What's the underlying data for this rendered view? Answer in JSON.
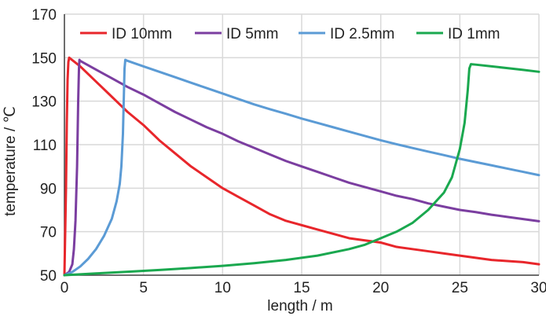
{
  "chart_data": {
    "type": "line",
    "title": "",
    "xlabel": "length / m",
    "ylabel": "temperature / ℃",
    "xlim": [
      0,
      30
    ],
    "ylim": [
      50,
      170
    ],
    "xticks": [
      "0",
      "5",
      "10",
      "15",
      "20",
      "25",
      "30"
    ],
    "yticks": [
      "50",
      "70",
      "90",
      "110",
      "130",
      "150",
      "170"
    ],
    "grid": true,
    "legend_position": "top",
    "series": [
      {
        "name": "ID 10mm",
        "color": "#e8262b",
        "points": [
          [
            0,
            50
          ],
          [
            0.1,
            90
          ],
          [
            0.15,
            120
          ],
          [
            0.2,
            140
          ],
          [
            0.25,
            148
          ],
          [
            0.3,
            150
          ],
          [
            1,
            146
          ],
          [
            2,
            139
          ],
          [
            3,
            132
          ],
          [
            4,
            125
          ],
          [
            5,
            119
          ],
          [
            6,
            112
          ],
          [
            7,
            106
          ],
          [
            8,
            100
          ],
          [
            9,
            95
          ],
          [
            10,
            90
          ],
          [
            11,
            86
          ],
          [
            12,
            82
          ],
          [
            13,
            78
          ],
          [
            14,
            75
          ],
          [
            15,
            73
          ],
          [
            16,
            71
          ],
          [
            17,
            69
          ],
          [
            18,
            67
          ],
          [
            19,
            66
          ],
          [
            20,
            65
          ],
          [
            21,
            63
          ],
          [
            22,
            62
          ],
          [
            23,
            61
          ],
          [
            24,
            60
          ],
          [
            25,
            59
          ],
          [
            26,
            58
          ],
          [
            27,
            57
          ],
          [
            28,
            56.5
          ],
          [
            29,
            56
          ],
          [
            30,
            55
          ]
        ]
      },
      {
        "name": "ID 5mm",
        "color": "#7b3ea0",
        "points": [
          [
            0,
            50
          ],
          [
            0.3,
            51.5
          ],
          [
            0.5,
            55
          ],
          [
            0.6,
            62
          ],
          [
            0.7,
            75
          ],
          [
            0.8,
            100
          ],
          [
            0.87,
            130
          ],
          [
            0.92,
            145
          ],
          [
            0.95,
            149
          ],
          [
            1,
            148.5
          ],
          [
            2,
            144.5
          ],
          [
            3,
            140.5
          ],
          [
            4,
            136.5
          ],
          [
            5,
            133
          ],
          [
            6,
            129
          ],
          [
            7,
            125
          ],
          [
            8,
            121.5
          ],
          [
            9,
            118
          ],
          [
            10,
            115
          ],
          [
            11,
            111.5
          ],
          [
            12,
            108.5
          ],
          [
            13,
            105.5
          ],
          [
            14,
            102.5
          ],
          [
            15,
            100
          ],
          [
            16,
            97.5
          ],
          [
            17,
            95
          ],
          [
            18,
            92.5
          ],
          [
            19,
            90.5
          ],
          [
            20,
            88.5
          ],
          [
            21,
            86.5
          ],
          [
            22,
            85
          ],
          [
            23,
            83
          ],
          [
            24,
            81.5
          ],
          [
            25,
            80
          ],
          [
            26,
            79
          ],
          [
            27,
            77.8
          ],
          [
            28,
            76.8
          ],
          [
            29,
            75.8
          ],
          [
            30,
            74.8
          ]
        ]
      },
      {
        "name": "ID 2.5mm",
        "color": "#5b9bd5",
        "points": [
          [
            0,
            50
          ],
          [
            0.5,
            51.5
          ],
          [
            1,
            54
          ],
          [
            1.5,
            57.5
          ],
          [
            2,
            62
          ],
          [
            2.5,
            68
          ],
          [
            3,
            76
          ],
          [
            3.3,
            84
          ],
          [
            3.5,
            92
          ],
          [
            3.6,
            100
          ],
          [
            3.7,
            115
          ],
          [
            3.75,
            130
          ],
          [
            3.8,
            145
          ],
          [
            3.85,
            149
          ],
          [
            4,
            148.5
          ],
          [
            5,
            146
          ],
          [
            6,
            143.5
          ],
          [
            7,
            141
          ],
          [
            8,
            138.5
          ],
          [
            9,
            136
          ],
          [
            10,
            133.5
          ],
          [
            11,
            131
          ],
          [
            12,
            128.5
          ],
          [
            13,
            126.3
          ],
          [
            14,
            124.2
          ],
          [
            15,
            122
          ],
          [
            16,
            120
          ],
          [
            17,
            118
          ],
          [
            18,
            116
          ],
          [
            19,
            114
          ],
          [
            20,
            112
          ],
          [
            21,
            110.2
          ],
          [
            22,
            108.5
          ],
          [
            23,
            106.8
          ],
          [
            24,
            105.2
          ],
          [
            25,
            103.5
          ],
          [
            26,
            102
          ],
          [
            27,
            100.5
          ],
          [
            28,
            99
          ],
          [
            29,
            97.5
          ],
          [
            30,
            96
          ]
        ]
      },
      {
        "name": "ID 1mm",
        "color": "#1aa84f",
        "points": [
          [
            0,
            50
          ],
          [
            2,
            50.8
          ],
          [
            4,
            51.6
          ],
          [
            6,
            52.4
          ],
          [
            8,
            53.3
          ],
          [
            10,
            54.3
          ],
          [
            12,
            55.5
          ],
          [
            14,
            57
          ],
          [
            16,
            59
          ],
          [
            18,
            62
          ],
          [
            19,
            64
          ],
          [
            20,
            67
          ],
          [
            21,
            70
          ],
          [
            22,
            74
          ],
          [
            23,
            80
          ],
          [
            24,
            88
          ],
          [
            24.5,
            95
          ],
          [
            25,
            108
          ],
          [
            25.3,
            120
          ],
          [
            25.5,
            135
          ],
          [
            25.6,
            145
          ],
          [
            25.7,
            147
          ],
          [
            26,
            146.8
          ],
          [
            27,
            146
          ],
          [
            28,
            145.2
          ],
          [
            29,
            144.4
          ],
          [
            30,
            143.5
          ]
        ]
      }
    ]
  }
}
